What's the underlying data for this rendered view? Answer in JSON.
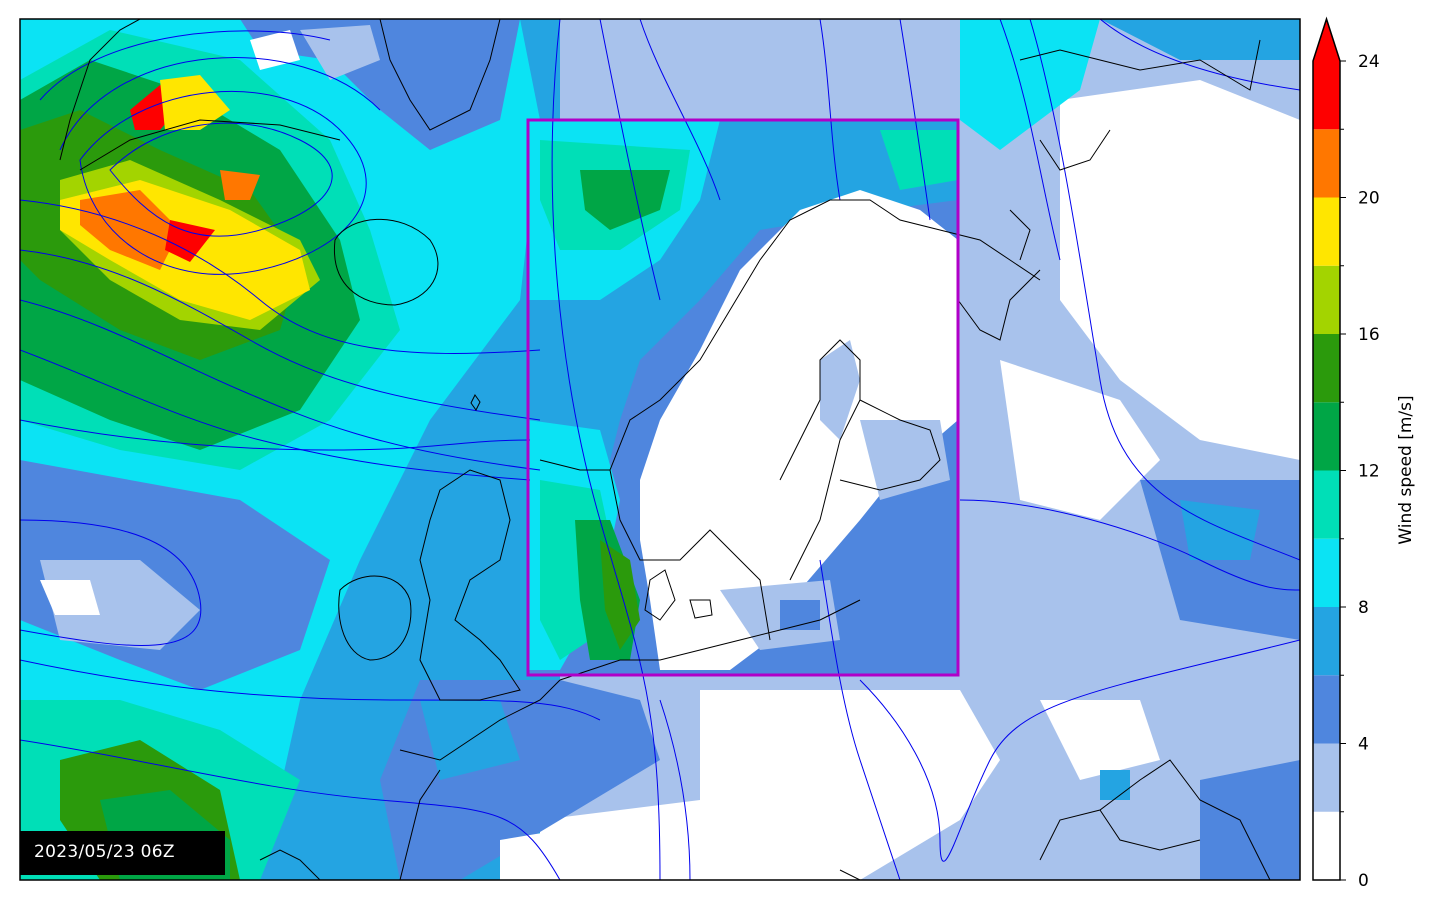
{
  "timestamp": "2023/05/23 06Z",
  "colorbar": {
    "label": "Wind speed [m/s]",
    "tick_labels": [
      "0",
      "4",
      "8",
      "12",
      "16",
      "20",
      "24"
    ],
    "bins": [
      {
        "from": 0,
        "to": 2,
        "color": "#ffffff"
      },
      {
        "from": 2,
        "to": 4,
        "color": "#a8c2ec"
      },
      {
        "from": 4,
        "to": 6,
        "color": "#4f86de"
      },
      {
        "from": 6,
        "to": 8,
        "color": "#24a4e2"
      },
      {
        "from": 8,
        "to": 10,
        "color": "#0be3f4"
      },
      {
        "from": 10,
        "to": 12,
        "color": "#00dfb7"
      },
      {
        "from": 12,
        "to": 14,
        "color": "#00a646"
      },
      {
        "from": 14,
        "to": 16,
        "color": "#2b9a0c"
      },
      {
        "from": 16,
        "to": 18,
        "color": "#a3d400"
      },
      {
        "from": 18,
        "to": 20,
        "color": "#ffe600"
      },
      {
        "from": 20,
        "to": 22,
        "color": "#ff7700"
      },
      {
        "from": 22,
        "to": 24,
        "color": "#fe0000"
      }
    ],
    "extend": "max",
    "extend_color": "#fe0000"
  },
  "colors": {
    "isobars": "#0000ee",
    "coastline": "#000000",
    "domain_box": "#b000c8"
  }
}
